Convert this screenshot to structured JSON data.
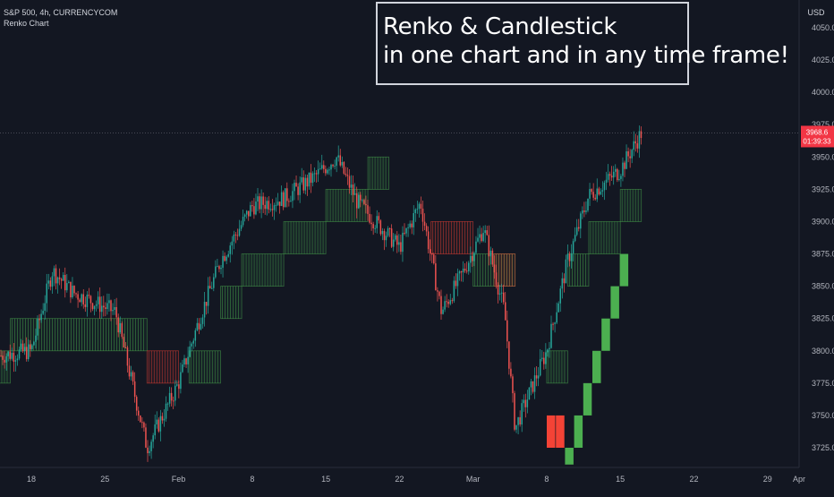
{
  "header": {
    "symbol_line": "S&P 500, 4h, CURRENCYCOM",
    "indicator": "Renko Chart"
  },
  "banner": {
    "line1": "Renko & Candlestick",
    "line2": "in one chart and in any time frame!"
  },
  "price_axis": {
    "currency": "USD",
    "ticks": [
      "4050.0",
      "4025.0",
      "4000.0",
      "3975.0",
      "3950.0",
      "3925.0",
      "3900.0",
      "3875.0",
      "3850.0",
      "3825.0",
      "3800.0",
      "3775.0",
      "3750.0",
      "3725.0"
    ],
    "last_price": "3968.6",
    "countdown": "01:39:33"
  },
  "time_axis": {
    "ticks": [
      "18",
      "25",
      "Feb",
      "8",
      "15",
      "22",
      "Mar",
      "8",
      "15",
      "22",
      "29",
      "Apr"
    ]
  },
  "colors": {
    "background": "#131722",
    "up": "#26a69a",
    "down": "#ef5350",
    "renko_up": "#4caf50",
    "renko_down": "#f44336",
    "price_label": "#f23645"
  },
  "chart_data": {
    "type": "candlestick+renko",
    "title": "S&P 500, 4h, CURRENCYCOM",
    "ylim": [
      3712,
      4066
    ],
    "renko_box_size": 25,
    "renko_overlay": [
      {
        "trend": "up",
        "low": 3775,
        "high": 3800,
        "from": "Jan 14",
        "to": "Jan 16"
      },
      {
        "trend": "up",
        "low": 3800,
        "high": 3825,
        "from": "Jan 16",
        "to": "Jan 29"
      },
      {
        "trend": "down",
        "low": 3775,
        "high": 3800,
        "from": "Jan 29",
        "to": "Feb 1"
      },
      {
        "trend": "up",
        "low": 3775,
        "high": 3800,
        "from": "Feb 2",
        "to": "Feb 5"
      },
      {
        "trend": "up",
        "low": 3825,
        "high": 3850,
        "from": "Feb 5",
        "to": "Feb 7"
      },
      {
        "trend": "up",
        "low": 3850,
        "high": 3875,
        "from": "Feb 7",
        "to": "Feb 11"
      },
      {
        "trend": "up",
        "low": 3875,
        "high": 3900,
        "from": "Feb 11",
        "to": "Feb 15"
      },
      {
        "trend": "up",
        "low": 3900,
        "high": 3925,
        "from": "Feb 15",
        "to": "Feb 19"
      },
      {
        "trend": "up",
        "low": 3925,
        "high": 3950,
        "from": "Feb 19",
        "to": "Feb 21"
      },
      {
        "trend": "down",
        "low": 3875,
        "high": 3900,
        "from": "Feb 25",
        "to": "Mar 1"
      },
      {
        "trend": "up",
        "low": 3850,
        "high": 3875,
        "from": "Mar 1",
        "to": "Mar 5"
      },
      {
        "trend": "down",
        "low": 3850,
        "high": 3875,
        "from": "Mar 3",
        "to": "Mar 5"
      },
      {
        "trend": "up",
        "low": 3775,
        "high": 3800,
        "from": "Mar 8",
        "to": "Mar 10"
      },
      {
        "trend": "up",
        "low": 3850,
        "high": 3875,
        "from": "Mar 10",
        "to": "Mar 12"
      },
      {
        "trend": "up",
        "low": 3875,
        "high": 3900,
        "from": "Mar 12",
        "to": "Mar 15"
      },
      {
        "trend": "up",
        "low": 3900,
        "high": 3925,
        "from": "Mar 15",
        "to": "Mar 17"
      }
    ],
    "renko_bricks_legend": [
      {
        "trend": "down",
        "low": 3725,
        "high": 3750
      },
      {
        "trend": "down",
        "low": 3725,
        "high": 3750
      },
      {
        "trend": "up",
        "low": 3712,
        "high": 3725
      },
      {
        "trend": "up",
        "low": 3725,
        "high": 3750
      },
      {
        "trend": "up",
        "low": 3750,
        "high": 3775
      },
      {
        "trend": "up",
        "low": 3775,
        "high": 3800
      },
      {
        "trend": "up",
        "low": 3800,
        "high": 3825
      },
      {
        "trend": "up",
        "low": 3825,
        "high": 3850
      },
      {
        "trend": "up",
        "low": 3850,
        "high": 3875
      }
    ],
    "candles_close_path": [
      [
        "Jan 12",
        3823
      ],
      [
        "Jan 14",
        3795
      ],
      [
        "Jan 18",
        3800
      ],
      [
        "Jan 20",
        3862
      ],
      [
        "Jan 22",
        3845
      ],
      [
        "Jan 26",
        3830
      ],
      [
        "Jan 28",
        3760
      ],
      [
        "Jan 29",
        3725
      ],
      [
        "Feb 1",
        3775
      ],
      [
        "Feb 3",
        3825
      ],
      [
        "Feb 5",
        3870
      ],
      [
        "Feb 8",
        3912
      ],
      [
        "Feb 11",
        3918
      ],
      [
        "Feb 14",
        3935
      ],
      [
        "Feb 16",
        3950
      ],
      [
        "Feb 18",
        3915
      ],
      [
        "Feb 22",
        3880
      ],
      [
        "Feb 24",
        3915
      ],
      [
        "Feb 26",
        3830
      ],
      [
        "Feb 28",
        3860
      ],
      [
        "Mar 2",
        3895
      ],
      [
        "Mar 4",
        3830
      ],
      [
        "Mar 5",
        3740
      ],
      [
        "Mar 8",
        3800
      ],
      [
        "Mar 10",
        3870
      ],
      [
        "Mar 12",
        3920
      ],
      [
        "Mar 15",
        3940
      ],
      [
        "Mar 17",
        3968.6
      ]
    ]
  }
}
